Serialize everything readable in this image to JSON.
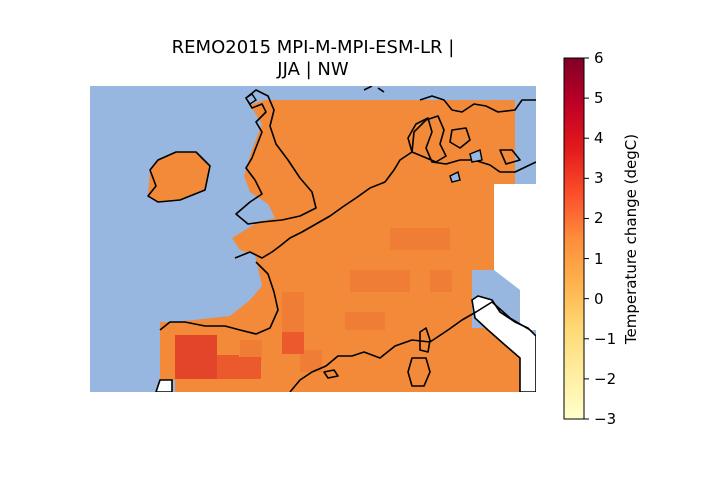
{
  "title": {
    "line1": "REMO2015 MPI-M-MPI-ESM-LR |",
    "line2": "JJA | NW"
  },
  "colorbar": {
    "label": "Temperature change (degC)",
    "min": -3,
    "max": 6,
    "colormap": "YlOrRd",
    "ticks": [
      "6",
      "5",
      "4",
      "3",
      "2",
      "1",
      "0",
      "−1",
      "−2",
      "−3"
    ]
  },
  "colors": {
    "ocean": "#97b6e0",
    "coastline": "#000000",
    "anomaly_main": "#f28a3a",
    "anomaly_high": "#ea5a2c",
    "anomaly_highest": "#e2452a"
  }
}
